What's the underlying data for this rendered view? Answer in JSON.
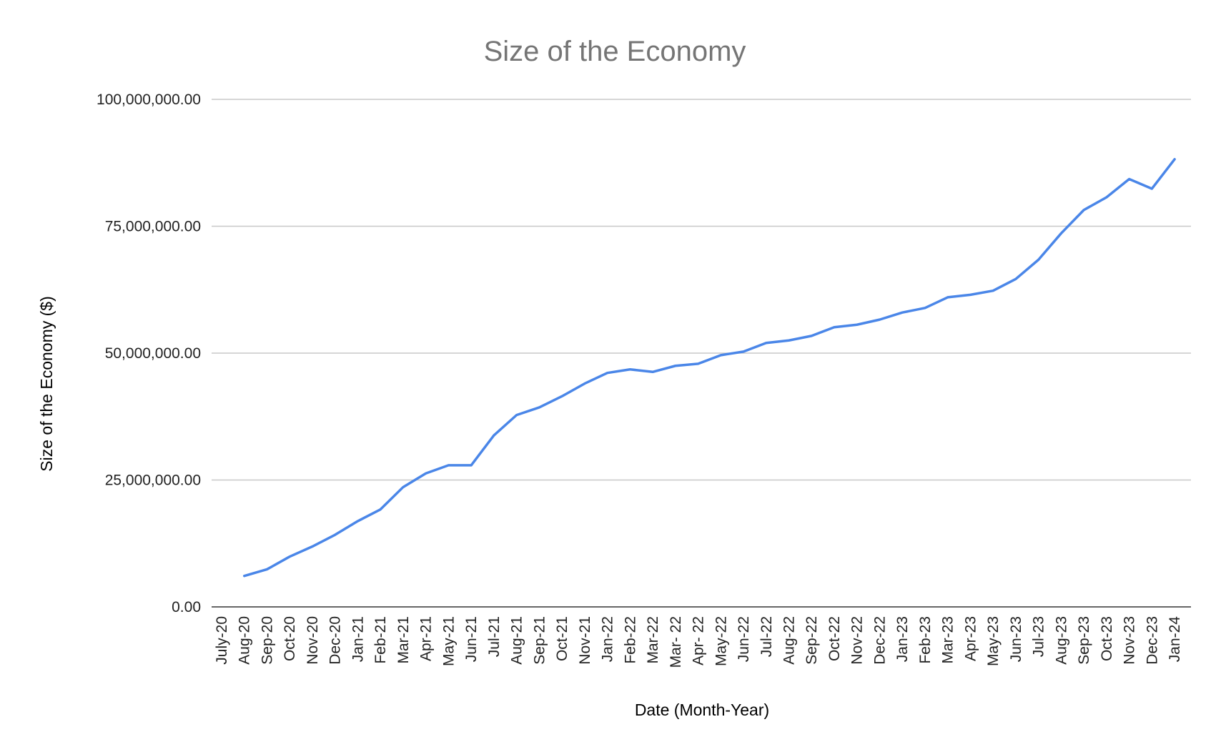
{
  "chart_data": {
    "type": "line",
    "title": "Size of the Economy",
    "xlabel": "Date (Month-Year)",
    "ylabel": "Size of the Economy ($)",
    "ylim": [
      0,
      100000000
    ],
    "y_ticks": [
      0,
      25000000,
      50000000,
      75000000,
      100000000
    ],
    "y_tick_labels": [
      "0.00",
      "25,000,000.00",
      "50,000,000.00",
      "75,000,000.00",
      "100,000,000.00"
    ],
    "grid": true,
    "legend": "none",
    "line_color": "#4a86e8",
    "categories": [
      "July-20",
      "Aug-20",
      "Sep-20",
      "Oct-20",
      "Nov-20",
      "Dec-20",
      "Jan-21",
      "Feb-21",
      "Mar-21",
      "Apr-21",
      "May-21",
      "Jun-21",
      "Jul-21",
      "Aug-21",
      "Sep-21",
      "Oct-21",
      "Nov-21",
      "Jan-22",
      "Feb-22",
      "Mar-22",
      "Mar- 22",
      "Apr- 22",
      "May-22",
      "Jun-22",
      "Jul-22",
      "Aug-22",
      "Sep-22",
      "Oct-22",
      "Nov-22",
      "Dec-22",
      "Jan-23",
      "Feb-23",
      "Mar-23",
      "Apr-23",
      "May-23",
      "Jun-23",
      "Jul-23",
      "Aug-23",
      "Sep-23",
      "Oct-23",
      "Nov-23",
      "Dec-23",
      "Jan-24"
    ],
    "series": [
      {
        "values": [
          null,
          6100000,
          7400000,
          9900000,
          11900000,
          14200000,
          16900000,
          19200000,
          23600000,
          26300000,
          27900000,
          27900000,
          33800000,
          37800000,
          39300000,
          41500000,
          44000000,
          46100000,
          46800000,
          46300000,
          47500000,
          47900000,
          49600000,
          50300000,
          52000000,
          52500000,
          53400000,
          55100000,
          55600000,
          56600000,
          58000000,
          58900000,
          61000000,
          61500000,
          62300000,
          64600000,
          68400000,
          73600000,
          78200000,
          80700000,
          84300000,
          82400000,
          88200000
        ]
      }
    ]
  }
}
